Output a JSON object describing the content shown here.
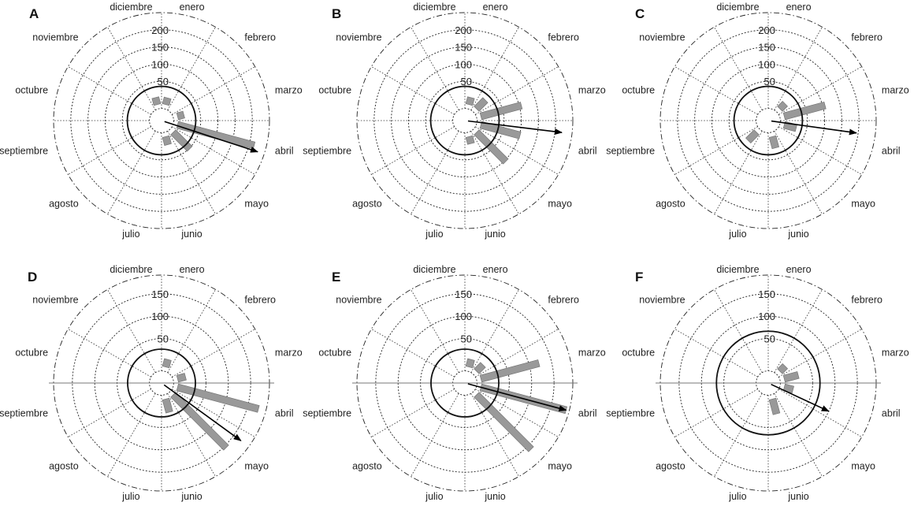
{
  "chart_data": [
    {
      "panel": "A",
      "type": "polar-histogram",
      "months": [
        "enero",
        "febrero",
        "marzo",
        "abril",
        "mayo",
        "junio",
        "julio",
        "agosto",
        "septiembre",
        "octubre",
        "noviembre",
        "diciembre"
      ],
      "rticks": [
        "50",
        "100",
        "150",
        "200"
      ],
      "rmax": 250,
      "bars": [
        {
          "month": "marzo",
          "value": 3
        },
        {
          "month": "abril",
          "value": 215
        },
        {
          "month": "mayo",
          "value": 52
        },
        {
          "month": "junio",
          "value": 8
        },
        {
          "month": "diciembre",
          "value": 5
        },
        {
          "month": "enero",
          "value": 4
        }
      ],
      "mean_vector": {
        "angle_deg": 108,
        "value": 230
      },
      "inner_circle": 40
    },
    {
      "panel": "B",
      "type": "polar-histogram",
      "months": [
        "enero",
        "febrero",
        "marzo",
        "abril",
        "mayo",
        "junio",
        "julio",
        "agosto",
        "septiembre",
        "octubre",
        "noviembre",
        "diciembre"
      ],
      "rticks": [
        "50",
        "100",
        "150",
        "200"
      ],
      "rmax": 250,
      "bars": [
        {
          "month": "febrero",
          "value": 20
        },
        {
          "month": "marzo",
          "value": 106
        },
        {
          "month": "abril",
          "value": 102
        },
        {
          "month": "mayo",
          "value": 104
        },
        {
          "month": "junio",
          "value": 5
        },
        {
          "month": "enero",
          "value": 5
        }
      ],
      "mean_vector": {
        "angle_deg": 97,
        "value": 220
      },
      "inner_circle": 40
    },
    {
      "panel": "C",
      "type": "polar-histogram",
      "months": [
        "enero",
        "febrero",
        "marzo",
        "abril",
        "mayo",
        "junio",
        "julio",
        "agosto",
        "septiembre",
        "octubre",
        "noviembre",
        "diciembre"
      ],
      "rticks": [
        "50",
        "100",
        "150",
        "200"
      ],
      "rmax": 250,
      "bars": [
        {
          "month": "marzo",
          "value": 107
        },
        {
          "month": "abril",
          "value": 20
        },
        {
          "month": "junio",
          "value": 18
        },
        {
          "month": "agosto",
          "value": 18
        },
        {
          "month": "febrero",
          "value": 5
        }
      ],
      "mean_vector": {
        "angle_deg": 98,
        "value": 195
      },
      "inner_circle": 40
    },
    {
      "panel": "D",
      "type": "polar-histogram",
      "months": [
        "enero",
        "febrero",
        "marzo",
        "abril",
        "mayo",
        "junio",
        "julio",
        "agosto",
        "septiembre",
        "octubre",
        "noviembre",
        "diciembre"
      ],
      "rticks": [
        "50",
        "100",
        "150"
      ],
      "rmax": 192,
      "bars": [
        {
          "month": "abril",
          "value": 175
        },
        {
          "month": "mayo",
          "value": 155
        },
        {
          "month": "junio",
          "value": 18
        },
        {
          "month": "marzo",
          "value": 6
        },
        {
          "month": "enero",
          "value": 5
        }
      ],
      "mean_vector": {
        "angle_deg": 126,
        "value": 170
      },
      "inner_circle": 30
    },
    {
      "panel": "E",
      "type": "polar-histogram",
      "months": [
        "enero",
        "febrero",
        "marzo",
        "abril",
        "mayo",
        "junio",
        "julio",
        "agosto",
        "septiembre",
        "octubre",
        "noviembre",
        "diciembre"
      ],
      "rticks": [
        "50",
        "100",
        "150"
      ],
      "rmax": 192,
      "bars": [
        {
          "month": "febrero",
          "value": 8
        },
        {
          "month": "marzo",
          "value": 122
        },
        {
          "month": "abril",
          "value": 185
        },
        {
          "month": "mayo",
          "value": 160
        },
        {
          "month": "enero",
          "value": 5
        }
      ],
      "mean_vector": {
        "angle_deg": 105,
        "value": 185
      },
      "inner_circle": 30
    },
    {
      "panel": "F",
      "type": "polar-histogram",
      "months": [
        "enero",
        "febrero",
        "marzo",
        "abril",
        "mayo",
        "junio",
        "julio",
        "agosto",
        "septiembre",
        "octubre",
        "noviembre",
        "diciembre"
      ],
      "rticks": [
        "50",
        "100",
        "150"
      ],
      "rmax": 192,
      "bars": [
        {
          "month": "marzo",
          "value": 20
        },
        {
          "month": "abril",
          "value": 8
        },
        {
          "month": "junio",
          "value": 22
        },
        {
          "month": "febrero",
          "value": 4
        }
      ],
      "mean_vector": {
        "angle_deg": 115,
        "value": 100
      },
      "inner_circle": 70
    }
  ]
}
